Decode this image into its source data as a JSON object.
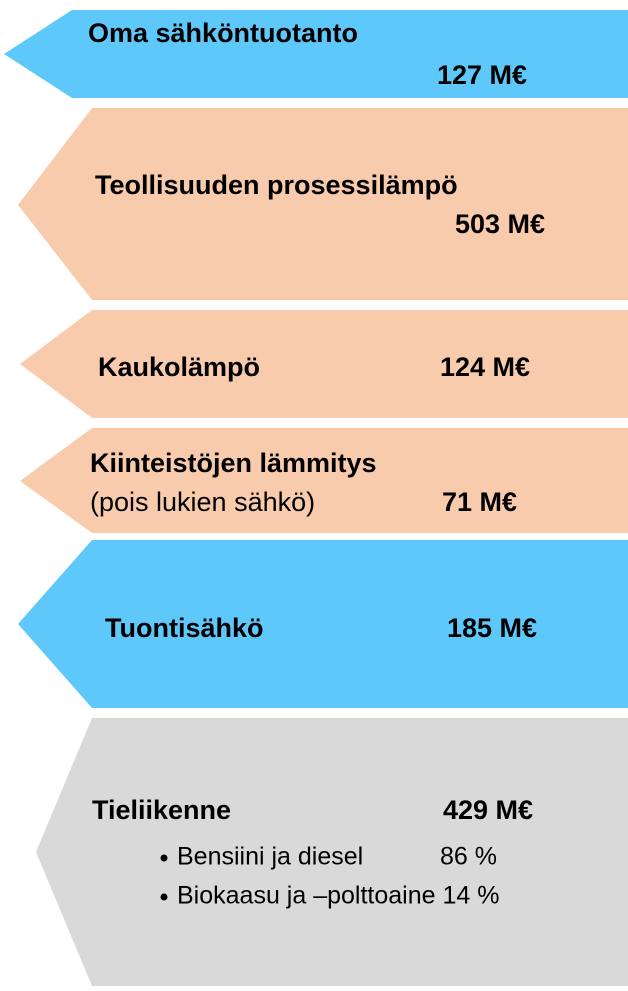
{
  "blocks": [
    {
      "label": "Oma sähköntuotanto",
      "value": "127 M€"
    },
    {
      "label": "Teollisuuden prosessilämpö",
      "value": "503 M€"
    },
    {
      "label": "Kaukolämpö",
      "value": "124 M€"
    },
    {
      "label": "Kiinteistöjen lämmitys",
      "sublabel": "(pois lukien sähkö)",
      "value": "71 M€"
    },
    {
      "label": "Tuontisähkö",
      "value": "185 M€"
    },
    {
      "label": "Tieliikenne",
      "value": "429 M€",
      "bullets": [
        {
          "text": "Bensiini ja diesel",
          "share": "86 %"
        },
        {
          "text": "Biokaasu ja –polttoaine 14 %"
        }
      ]
    }
  ]
}
